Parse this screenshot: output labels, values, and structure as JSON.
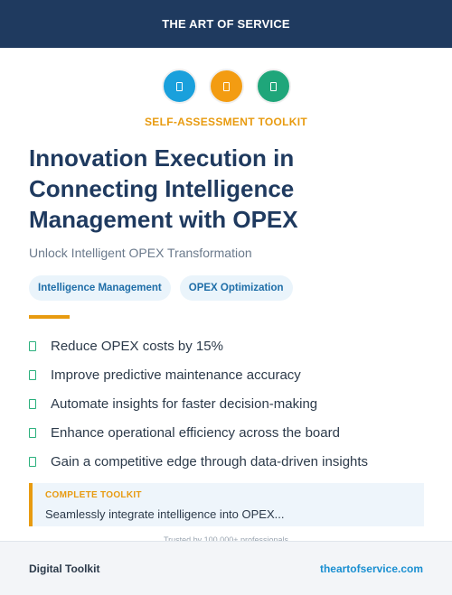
{
  "header": {
    "brand": "THE ART OF SERVICE"
  },
  "icons": [
    {
      "name": "document-icon",
      "color": "#1aa0dc"
    },
    {
      "name": "document-icon",
      "color": "#f39c12"
    },
    {
      "name": "document-icon",
      "color": "#1fa67a"
    }
  ],
  "kicker": "SELF-ASSESSMENT TOOLKIT",
  "title": "Innovation Execution in Connecting Intelligence Management with OPEX",
  "subtitle": "Unlock Intelligent OPEX Transformation",
  "tags": [
    "Intelligence Management",
    "OPEX Optimization"
  ],
  "bullets": [
    "Reduce OPEX costs by 15%",
    "Improve predictive maintenance accuracy",
    "Automate insights for faster decision-making",
    "Enhance operational efficiency across the board",
    "Gain a competitive edge through data-driven insights"
  ],
  "callout": {
    "label": "COMPLETE TOOLKIT",
    "text": "Seamlessly integrate intelligence into OPEX..."
  },
  "trusted": "Trusted by 100,000+ professionals",
  "footer": {
    "left": "Digital Toolkit",
    "right": "theartofservice.com"
  },
  "colors": {
    "navy": "#1f3a5f",
    "accent": "#e89b10",
    "link": "#1a8fd1",
    "check": "#2bb07d"
  }
}
